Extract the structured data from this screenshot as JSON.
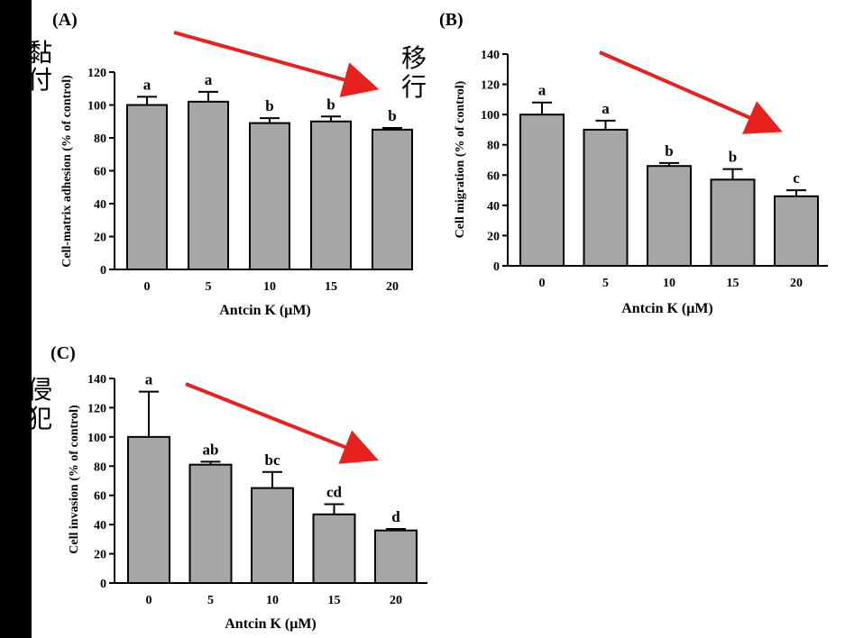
{
  "chart_data": [
    {
      "type": "bar",
      "panel_label": "(A)",
      "annotation": [
        "黏",
        "付"
      ],
      "categories": [
        "0",
        "5",
        "10",
        "15",
        "20"
      ],
      "values": [
        100,
        102,
        89,
        90,
        85
      ],
      "errors": [
        5,
        6,
        3,
        3,
        1
      ],
      "sig_letters": [
        "a",
        "a",
        "b",
        "b",
        "b"
      ],
      "xlabel": "Antcin K (μM)",
      "ylabel": "Cell-matrix adhesion (% of control)",
      "ylim": [
        0,
        120
      ],
      "yticks": [
        "0",
        "20",
        "40",
        "60",
        "80",
        "100",
        "120"
      ],
      "trend_arrow": true
    },
    {
      "type": "bar",
      "panel_label": "(B)",
      "annotation": [
        "移",
        "行"
      ],
      "categories": [
        "0",
        "5",
        "10",
        "15",
        "20"
      ],
      "values": [
        100,
        90,
        66,
        57,
        46
      ],
      "errors": [
        8,
        6,
        2,
        7,
        4
      ],
      "sig_letters": [
        "a",
        "a",
        "b",
        "b",
        "c"
      ],
      "xlabel": "Antcin K (μM)",
      "ylabel": "Cell migration (% of control)",
      "ylim": [
        0,
        140
      ],
      "yticks": [
        "0",
        "20",
        "40",
        "60",
        "80",
        "100",
        "120",
        "140"
      ],
      "trend_arrow": true
    },
    {
      "type": "bar",
      "panel_label": "(C)",
      "annotation": [
        "侵",
        "犯"
      ],
      "categories": [
        "0",
        "5",
        "10",
        "15",
        "20"
      ],
      "values": [
        100,
        81,
        65,
        47,
        36
      ],
      "errors": [
        31,
        2,
        11,
        7,
        1
      ],
      "sig_letters": [
        "a",
        "ab",
        "bc",
        "cd",
        "d"
      ],
      "xlabel": "Antcin K (μM)",
      "ylabel": "Cell invasion (% of control)",
      "ylim": [
        0,
        140
      ],
      "yticks": [
        "0",
        "20",
        "40",
        "60",
        "80",
        "100",
        "120",
        "140"
      ],
      "trend_arrow": true
    }
  ],
  "colors": {
    "bar_fill": "#a6a6a6",
    "bar_stroke": "#000000",
    "arrow": "#e8201e",
    "side_bar": "#000000"
  }
}
